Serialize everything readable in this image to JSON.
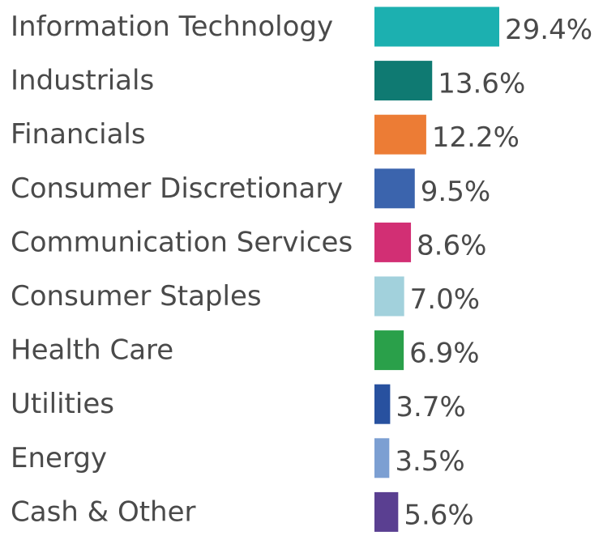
{
  "chart_data": {
    "type": "bar",
    "orientation": "horizontal",
    "categories": [
      "Information Technology",
      "Industrials",
      "Financials",
      "Consumer Discretionary",
      "Communication Services",
      "Consumer Staples",
      "Health Care",
      "Utilities",
      "Energy",
      "Cash & Other"
    ],
    "values": [
      29.4,
      13.6,
      12.2,
      9.5,
      8.6,
      7.0,
      6.9,
      3.7,
      3.5,
      5.6
    ],
    "value_labels": [
      "29.4%",
      "13.6%",
      "12.2%",
      "9.5%",
      "8.6%",
      "7.0%",
      "6.9%",
      "3.7%",
      "3.5%",
      "5.6%"
    ],
    "colors": [
      "#1cb0b0",
      "#0f7a72",
      "#ec7c35",
      "#3b64ad",
      "#d22f74",
      "#a2d1dc",
      "#2aa04a",
      "#28519f",
      "#7c9fd2",
      "#5a3f91"
    ],
    "title": "",
    "xlabel": "",
    "ylabel": "",
    "xlim": [
      0,
      29.4
    ],
    "grid": false,
    "legend": "none"
  }
}
